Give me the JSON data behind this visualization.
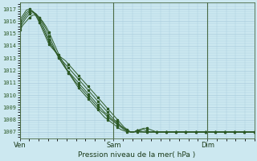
{
  "title": "Pression niveau de la mer( hPa )",
  "bg_color": "#cce8f0",
  "grid_color": "#aaccdd",
  "line_color": "#2d5a27",
  "tick_label_color": "#2d5a27",
  "ylim": [
    1006.5,
    1017.5
  ],
  "yticks": [
    1007,
    1008,
    1009,
    1010,
    1011,
    1012,
    1013,
    1014,
    1015,
    1016,
    1017
  ],
  "xlabel_color": "#1a3a18",
  "day_labels": [
    "Ven",
    "Sam",
    "Dim"
  ],
  "day_positions": [
    0.0,
    0.4,
    0.8
  ],
  "num_points": 73,
  "series": [
    [
      1016.1,
      1016.5,
      1016.9,
      1017.0,
      1016.8,
      1016.4,
      1015.9,
      1015.3,
      1014.7,
      1014.1,
      1013.8,
      1013.5,
      1013.2,
      1013.0,
      1012.8,
      1012.5,
      1012.2,
      1011.9,
      1011.6,
      1011.3,
      1011.0,
      1010.7,
      1010.4,
      1010.1,
      1009.8,
      1009.5,
      1009.2,
      1008.9,
      1008.6,
      1008.3,
      1008.0,
      1007.7,
      1007.4,
      1007.2,
      1007.0,
      1007.0,
      1007.1,
      1007.0,
      1007.0,
      1007.0,
      1007.0,
      1007.0,
      1007.0,
      1007.0,
      1007.0,
      1007.0,
      1007.0,
      1007.0,
      1007.0,
      1007.0,
      1007.0,
      1007.0,
      1007.0,
      1007.0,
      1007.0,
      1007.0,
      1007.0,
      1007.0,
      1007.0,
      1007.0,
      1007.0,
      1007.0,
      1007.0,
      1007.0,
      1007.0,
      1007.0,
      1007.0,
      1007.0,
      1007.0,
      1007.0,
      1007.0,
      1007.0,
      1007.0
    ],
    [
      1015.9,
      1016.3,
      1016.7,
      1016.9,
      1016.8,
      1016.5,
      1016.0,
      1015.5,
      1014.9,
      1014.3,
      1013.9,
      1013.5,
      1013.1,
      1012.8,
      1012.5,
      1012.2,
      1011.9,
      1011.6,
      1011.3,
      1011.0,
      1010.7,
      1010.4,
      1010.1,
      1009.8,
      1009.5,
      1009.2,
      1008.9,
      1008.6,
      1008.3,
      1008.0,
      1007.8,
      1007.5,
      1007.3,
      1007.1,
      1007.0,
      1007.0,
      1007.0,
      1007.0,
      1007.0,
      1007.0,
      1007.0,
      1007.0,
      1007.0,
      1007.0,
      1007.0,
      1007.0,
      1007.0,
      1007.0,
      1007.0,
      1007.0,
      1007.0,
      1007.0,
      1007.0,
      1007.0,
      1007.0,
      1007.0,
      1007.0,
      1007.0,
      1007.0,
      1007.0,
      1007.0,
      1007.0,
      1007.0,
      1007.0,
      1007.0,
      1007.0,
      1007.0,
      1007.0,
      1007.0,
      1007.0,
      1007.0,
      1007.0,
      1007.0
    ],
    [
      1015.7,
      1016.1,
      1016.5,
      1016.8,
      1016.8,
      1016.6,
      1016.2,
      1015.7,
      1015.1,
      1014.5,
      1014.0,
      1013.5,
      1013.0,
      1012.6,
      1012.2,
      1011.9,
      1011.6,
      1011.3,
      1011.0,
      1010.7,
      1010.4,
      1010.1,
      1009.8,
      1009.5,
      1009.2,
      1008.9,
      1008.6,
      1008.4,
      1008.1,
      1007.9,
      1007.7,
      1007.5,
      1007.3,
      1007.1,
      1007.0,
      1007.0,
      1007.1,
      1007.1,
      1007.0,
      1007.0,
      1007.0,
      1007.0,
      1007.0,
      1007.0,
      1007.0,
      1007.0,
      1007.0,
      1007.0,
      1007.0,
      1007.0,
      1007.0,
      1007.0,
      1007.0,
      1007.0,
      1007.0,
      1007.0,
      1007.0,
      1007.0,
      1007.0,
      1007.0,
      1007.0,
      1007.0,
      1007.0,
      1007.0,
      1007.0,
      1007.0,
      1007.0,
      1007.0,
      1007.0,
      1007.0,
      1007.0,
      1007.0,
      1007.0
    ],
    [
      1015.5,
      1015.9,
      1016.3,
      1016.6,
      1016.7,
      1016.6,
      1016.3,
      1015.9,
      1015.4,
      1014.8,
      1014.2,
      1013.6,
      1013.1,
      1012.6,
      1012.2,
      1011.8,
      1011.5,
      1011.1,
      1010.8,
      1010.5,
      1010.2,
      1009.9,
      1009.6,
      1009.3,
      1009.0,
      1008.7,
      1008.5,
      1008.2,
      1008.0,
      1007.8,
      1007.6,
      1007.4,
      1007.2,
      1007.1,
      1007.0,
      1007.0,
      1007.1,
      1007.2,
      1007.2,
      1007.1,
      1007.0,
      1007.0,
      1007.0,
      1007.0,
      1007.0,
      1007.0,
      1007.0,
      1007.0,
      1007.0,
      1007.0,
      1007.0,
      1007.0,
      1007.0,
      1007.0,
      1007.0,
      1007.0,
      1007.0,
      1007.0,
      1007.0,
      1007.0,
      1007.0,
      1007.0,
      1007.0,
      1007.0,
      1007.0,
      1007.0,
      1007.0,
      1007.0,
      1007.0,
      1007.0,
      1007.0,
      1007.0,
      1007.0
    ],
    [
      1015.3,
      1015.7,
      1016.0,
      1016.3,
      1016.5,
      1016.5,
      1016.3,
      1016.0,
      1015.6,
      1015.1,
      1014.5,
      1013.9,
      1013.3,
      1012.8,
      1012.3,
      1011.8,
      1011.4,
      1011.0,
      1010.6,
      1010.3,
      1010.0,
      1009.7,
      1009.4,
      1009.1,
      1008.8,
      1008.5,
      1008.2,
      1008.0,
      1007.8,
      1007.6,
      1007.4,
      1007.2,
      1007.1,
      1007.0,
      1007.0,
      1007.0,
      1007.1,
      1007.2,
      1007.3,
      1007.3,
      1007.2,
      1007.1,
      1007.0,
      1007.0,
      1007.0,
      1007.0,
      1007.0,
      1007.0,
      1007.0,
      1007.0,
      1007.0,
      1007.0,
      1007.0,
      1007.0,
      1007.0,
      1007.0,
      1007.0,
      1007.0,
      1007.0,
      1007.0,
      1007.0,
      1007.0,
      1007.0,
      1007.0,
      1007.0,
      1007.0,
      1007.0,
      1007.0,
      1007.0,
      1007.0,
      1007.0,
      1007.0,
      1007.0
    ]
  ]
}
